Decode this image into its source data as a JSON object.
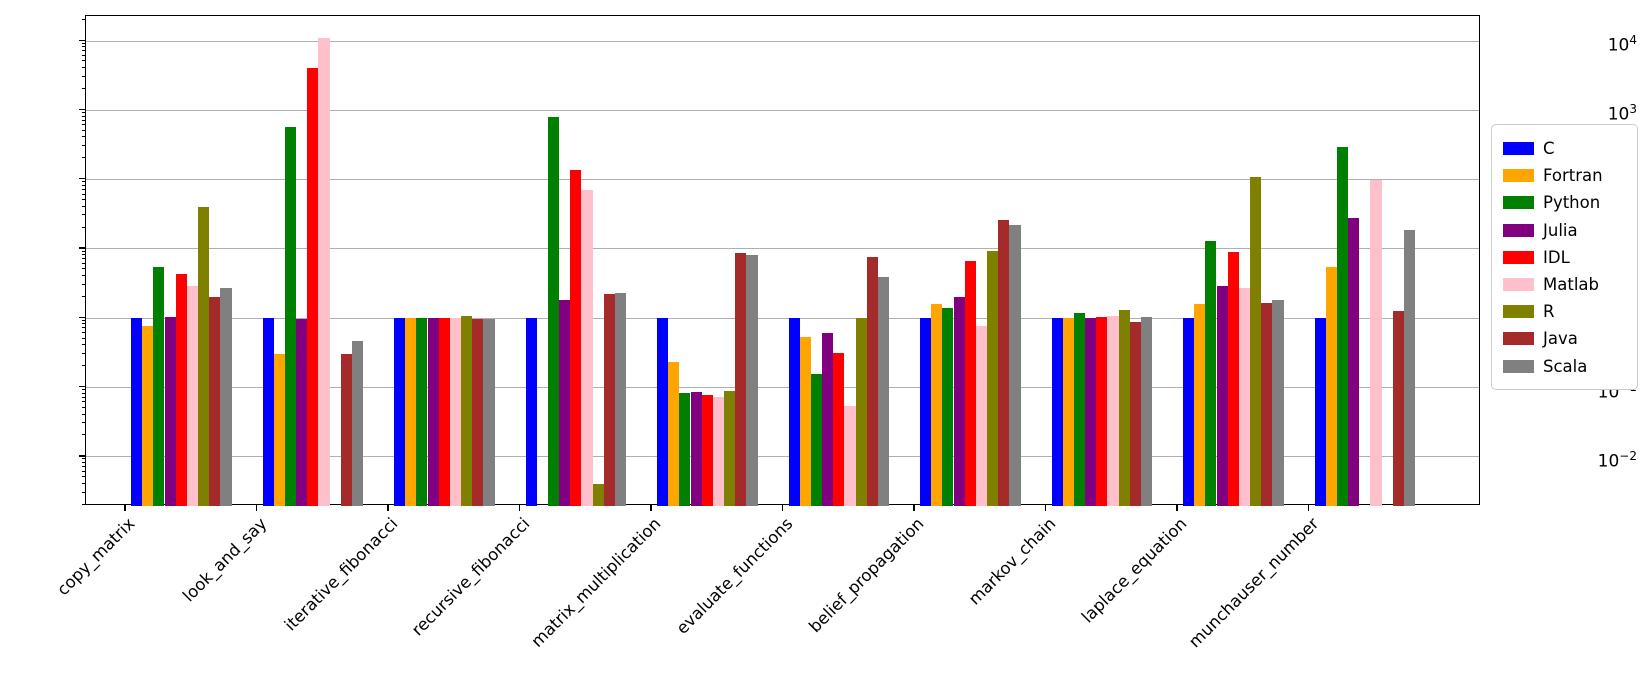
{
  "chart_data": {
    "type": "bar",
    "title": "",
    "xlabel": "",
    "ylabel": "",
    "yscale": "log",
    "ylim": [
      0.00195,
      23000
    ],
    "yticks_exponents": [
      4,
      3,
      2,
      1,
      0,
      -1,
      -2
    ],
    "grid": "horizontal",
    "legend_position": "right",
    "axis_colors": {
      "spine": "#000000",
      "grid": "#b0b0b0"
    },
    "categories": [
      "copy_matrix",
      "look_and_say",
      "iterative_fibonacci",
      "recursive_fibonacci",
      "matrix_multiplication",
      "evaluate_functions",
      "belief_propagation",
      "markov_chain",
      "laplace_equation",
      "munchauser_number"
    ],
    "series": [
      {
        "name": "C",
        "color": "#0000ff",
        "values": [
          1.0,
          1.0,
          1.0,
          1.0,
          1.0,
          1.0,
          1.0,
          1.0,
          1.0,
          1.0
        ]
      },
      {
        "name": "Fortran",
        "color": "#ffa500",
        "values": [
          0.78,
          0.3,
          1.0,
          null,
          0.23,
          0.54,
          1.6,
          1.0,
          1.6,
          5.5
        ]
      },
      {
        "name": "Python",
        "color": "#008000",
        "values": [
          5.5,
          570,
          1.0,
          790,
          0.083,
          0.155,
          1.4,
          1.18,
          13,
          300
        ]
      },
      {
        "name": "Julia",
        "color": "#800080",
        "values": [
          1.05,
          0.97,
          1.0,
          1.85,
          0.085,
          0.61,
          2.0,
          1.0,
          2.9,
          28
        ]
      },
      {
        "name": "IDL",
        "color": "#ff0000",
        "values": [
          4.4,
          4100,
          1.0,
          140,
          0.078,
          0.31,
          6.8,
          1.03,
          9.0,
          null
        ]
      },
      {
        "name": "Matlab",
        "color": "#ffc0cb",
        "values": [
          2.9,
          11000,
          1.0,
          70,
          0.072,
          0.054,
          0.77,
          1.07,
          2.7,
          100
        ]
      },
      {
        "name": "R",
        "color": "#808000",
        "values": [
          40,
          null,
          1.07,
          0.004,
          0.09,
          1.0,
          9.2,
          1.3,
          110,
          null
        ]
      },
      {
        "name": "Java",
        "color": "#a52a2a",
        "values": [
          2.0,
          0.3,
          0.98,
          2.2,
          8.7,
          7.6,
          26,
          0.88,
          1.65,
          1.27
        ]
      },
      {
        "name": "Scala",
        "color": "#808080",
        "values": [
          2.7,
          0.47,
          0.97,
          2.35,
          8.2,
          3.9,
          22,
          1.03,
          1.85,
          19
        ]
      }
    ]
  }
}
